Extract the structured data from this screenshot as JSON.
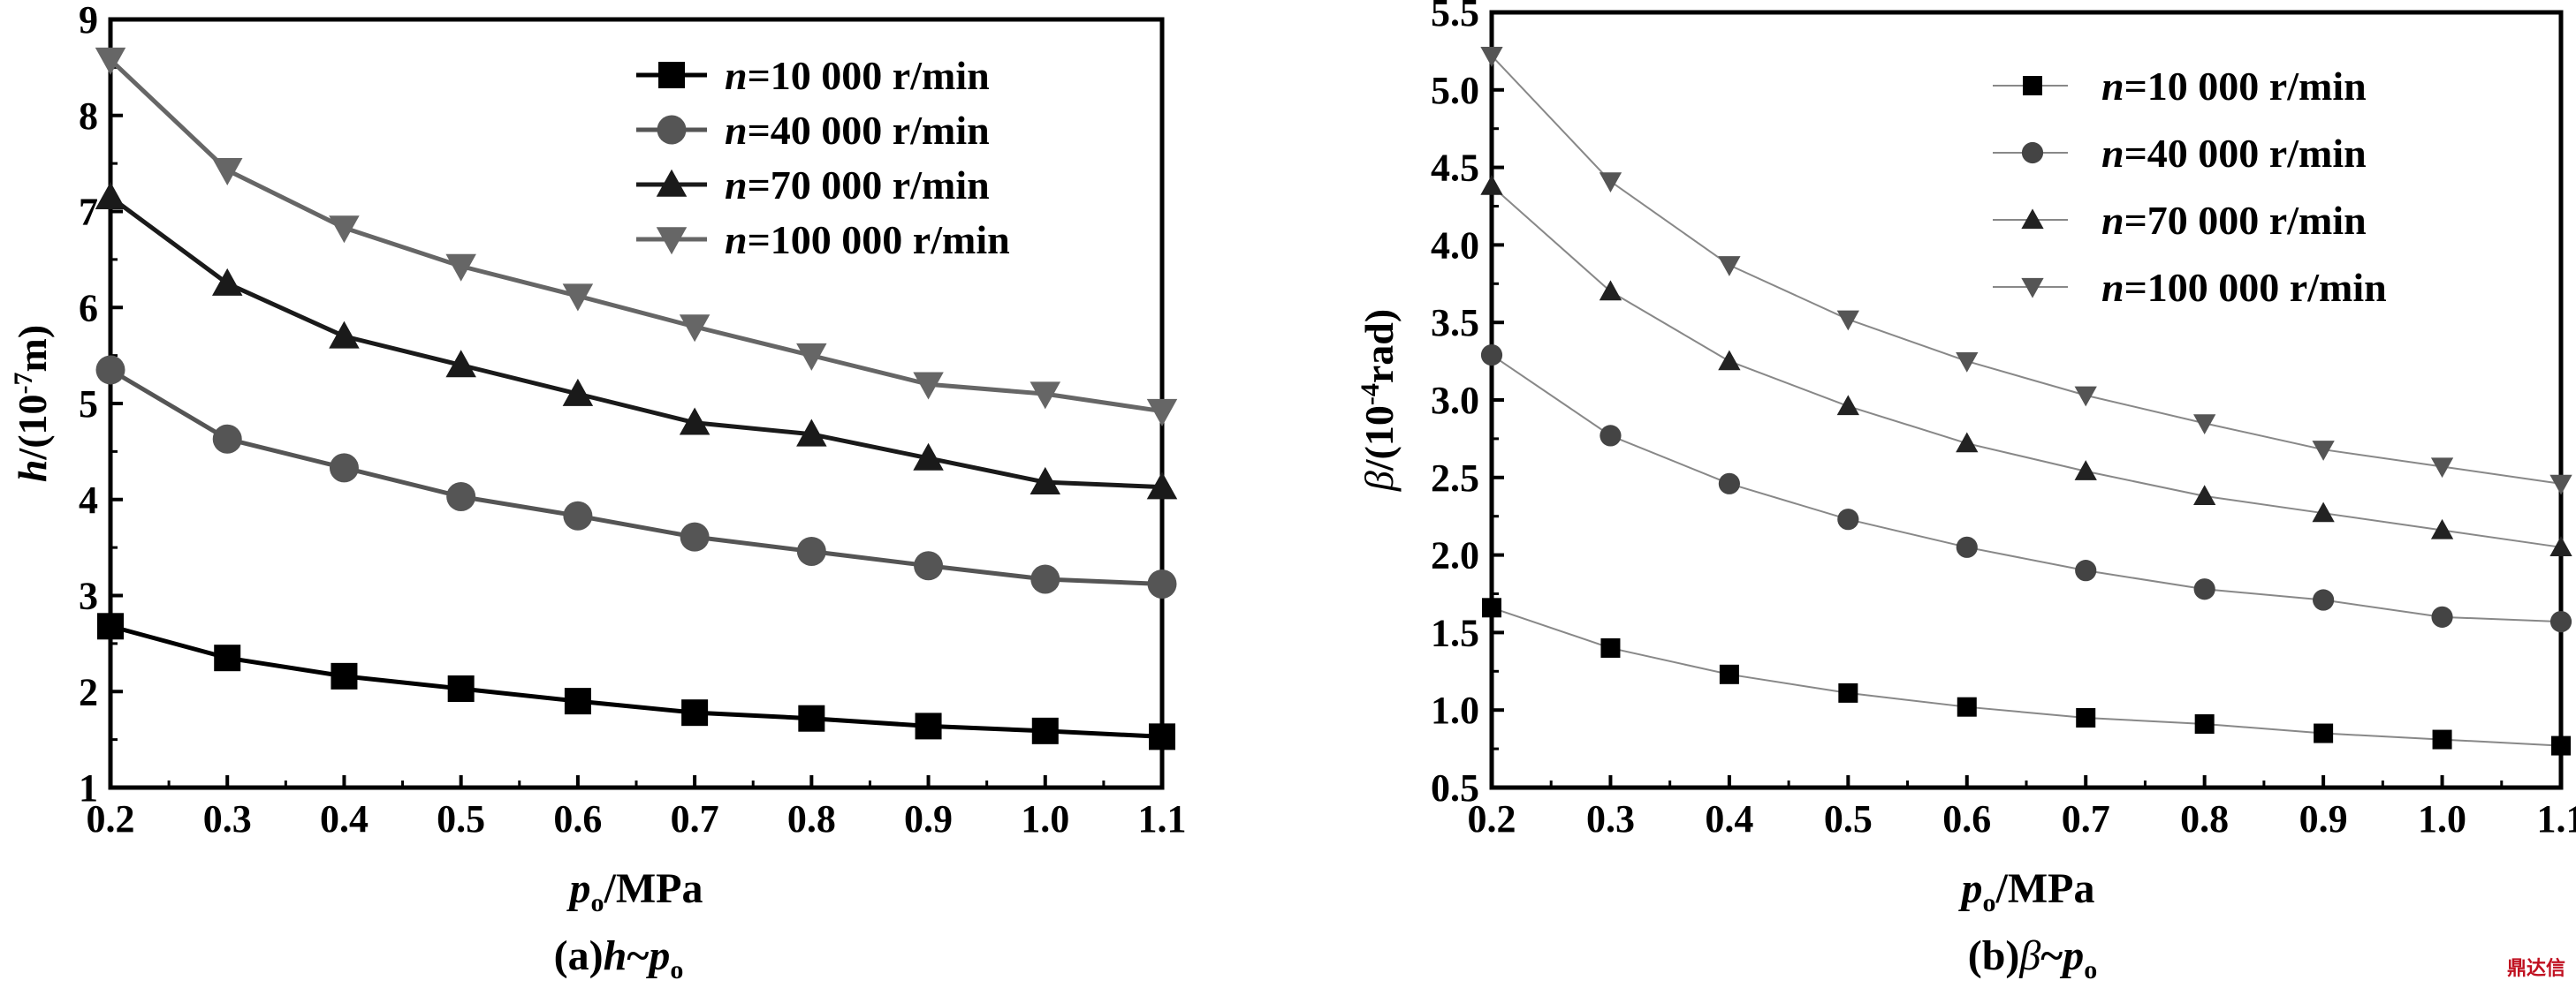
{
  "chart_data": [
    {
      "type": "line",
      "title": "",
      "xlabel": "",
      "ylabel": "",
      "x_ticks": [
        0.2,
        0.3,
        0.4,
        0.5,
        0.6,
        0.7,
        0.8,
        0.9,
        1.0,
        1.1
      ],
      "y_ticks": [
        1,
        2,
        3,
        4,
        5,
        6,
        7,
        8,
        9
      ],
      "xlim": [
        0.2,
        1.1
      ],
      "ylim": [
        1,
        9
      ],
      "grid": false,
      "legend_position": "top-right",
      "x": [
        0.2,
        0.3,
        0.4,
        0.5,
        0.6,
        0.7,
        0.8,
        0.9,
        1.0,
        1.1
      ],
      "series": [
        {
          "name": "n=10 000 r/min",
          "marker": "square",
          "values": [
            2.68,
            2.35,
            2.16,
            2.03,
            1.9,
            1.78,
            1.72,
            1.64,
            1.59,
            1.53
          ]
        },
        {
          "name": "n=40 000 r/min",
          "marker": "circle",
          "values": [
            5.35,
            4.63,
            4.33,
            4.03,
            3.83,
            3.61,
            3.46,
            3.31,
            3.17,
            3.12
          ]
        },
        {
          "name": "n=70 000 r/min",
          "marker": "triangle-up",
          "values": [
            7.15,
            6.25,
            5.7,
            5.4,
            5.1,
            4.8,
            4.68,
            4.43,
            4.18,
            4.13
          ]
        },
        {
          "name": "n=100 000 r/min",
          "marker": "triangle-down",
          "values": [
            8.58,
            7.43,
            6.83,
            6.43,
            6.12,
            5.8,
            5.5,
            5.2,
            5.1,
            4.92
          ]
        }
      ]
    },
    {
      "type": "line",
      "title": "",
      "xlabel": "",
      "ylabel": "",
      "x_ticks": [
        0.2,
        0.3,
        0.4,
        0.5,
        0.6,
        0.7,
        0.8,
        0.9,
        1.0,
        1.1
      ],
      "y_ticks": [
        0.5,
        1.0,
        1.5,
        2.0,
        2.5,
        3.0,
        3.5,
        4.0,
        4.5,
        5.0,
        5.5
      ],
      "xlim": [
        0.2,
        1.1
      ],
      "ylim": [
        0.5,
        5.5
      ],
      "grid": false,
      "legend_position": "top-right",
      "x": [
        0.2,
        0.3,
        0.4,
        0.5,
        0.6,
        0.7,
        0.8,
        0.9,
        1.0,
        1.1
      ],
      "series": [
        {
          "name": "n=10 000 r/min",
          "marker": "square",
          "values": [
            1.66,
            1.4,
            1.23,
            1.11,
            1.02,
            0.95,
            0.91,
            0.85,
            0.81,
            0.77
          ]
        },
        {
          "name": "n=40 000 r/min",
          "marker": "circle",
          "values": [
            3.29,
            2.77,
            2.46,
            2.23,
            2.05,
            1.9,
            1.78,
            1.71,
            1.6,
            1.57
          ]
        },
        {
          "name": "n=70 000 r/min",
          "marker": "triangle-up",
          "values": [
            4.38,
            3.7,
            3.25,
            2.96,
            2.72,
            2.54,
            2.38,
            2.27,
            2.16,
            2.05
          ]
        },
        {
          "name": "n=100 000 r/min",
          "marker": "triangle-down",
          "values": [
            5.22,
            4.41,
            3.87,
            3.52,
            3.25,
            3.03,
            2.85,
            2.68,
            2.57,
            2.46
          ]
        }
      ]
    }
  ],
  "labels": {
    "left_ylabel_var": "h",
    "left_ylabel_unit_open": "/(10",
    "left_ylabel_exp": "-7",
    "left_ylabel_unit_close": "m)",
    "right_ylabel_var": "β",
    "right_ylabel_unit_open": "/(10",
    "right_ylabel_exp": "-4",
    "right_ylabel_unit_close": "rad)",
    "xlabel_var": "p",
    "xlabel_sub": "o",
    "xlabel_unit": "/MPa",
    "left_caption_prefix": "(a)",
    "left_caption_var": "h",
    "left_caption_tilde": "~",
    "left_caption_p": "p",
    "left_caption_sub": "o",
    "right_caption_prefix": "(b)",
    "right_caption_var": "β",
    "right_caption_tilde": "~",
    "right_caption_p": "p",
    "right_caption_sub": "o"
  },
  "watermark": "鼎达信",
  "colors": {
    "series": [
      "#000000",
      "#555555",
      "#1a1a1a",
      "#666666"
    ],
    "right_series": [
      "#000000",
      "#444444",
      "#222222",
      "#555555"
    ],
    "right_line": "#888888"
  }
}
